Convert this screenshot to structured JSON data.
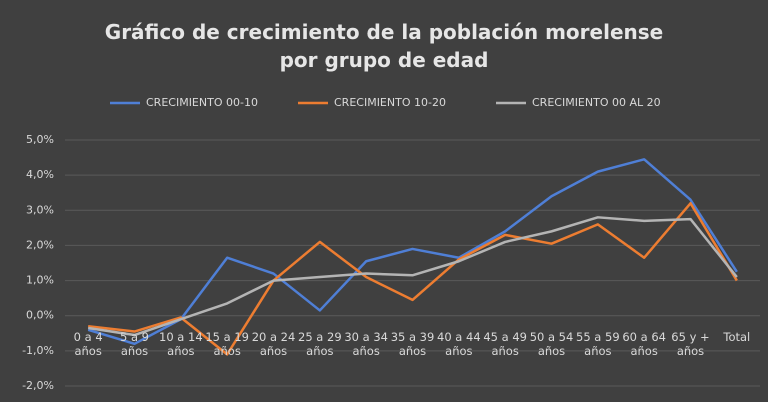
{
  "chart_data": {
    "type": "line",
    "title": "Gráfico de crecimiento de la población morelense por grupo de edad",
    "categories": [
      "0 a 4 años",
      "5 a 9 años",
      "10 a 14 años",
      "15 a 19 años",
      "20 a 24 años",
      "25 a 29 años",
      "30 a 34 años",
      "35 a 39 años",
      "40 a 44 años",
      "45 a 49 años",
      "50 a 54 años",
      "55 a 59 años",
      "60 a 64 años",
      "65 y + años",
      "Total"
    ],
    "series": [
      {
        "name": "CRECIMIENTO 00-10",
        "color": "#4f7fd6",
        "values": [
          -0.4,
          -0.8,
          -0.1,
          1.65,
          1.2,
          0.15,
          1.55,
          1.9,
          1.65,
          2.4,
          3.4,
          4.1,
          4.45,
          3.3,
          1.25
        ]
      },
      {
        "name": "CRECIMIENTO 10-20",
        "color": "#ed7d31",
        "values": [
          -0.3,
          -0.45,
          -0.05,
          -1.1,
          1.0,
          2.1,
          1.1,
          0.45,
          1.6,
          2.3,
          2.05,
          2.6,
          1.65,
          3.2,
          1.0
        ]
      },
      {
        "name": "CRECIMIENTO 00 AL 20",
        "color": "#b4b4b4",
        "values": [
          -0.35,
          -0.55,
          -0.1,
          0.35,
          1.0,
          1.1,
          1.2,
          1.15,
          1.55,
          2.1,
          2.4,
          2.8,
          2.7,
          2.75,
          1.1
        ]
      }
    ],
    "ylim": [
      -2,
      5
    ],
    "yticks": [
      {
        "value": -2,
        "label": "-2,0%"
      },
      {
        "value": -1,
        "label": "-1,0%"
      },
      {
        "value": 0,
        "label": "0,0%"
      },
      {
        "value": 1,
        "label": "1,0%"
      },
      {
        "value": 2,
        "label": "2,0%"
      },
      {
        "value": 3,
        "label": "3,0%"
      },
      {
        "value": 4,
        "label": "4,0%"
      },
      {
        "value": 5,
        "label": "5,0%"
      }
    ],
    "grid": true,
    "legend": "top"
  }
}
